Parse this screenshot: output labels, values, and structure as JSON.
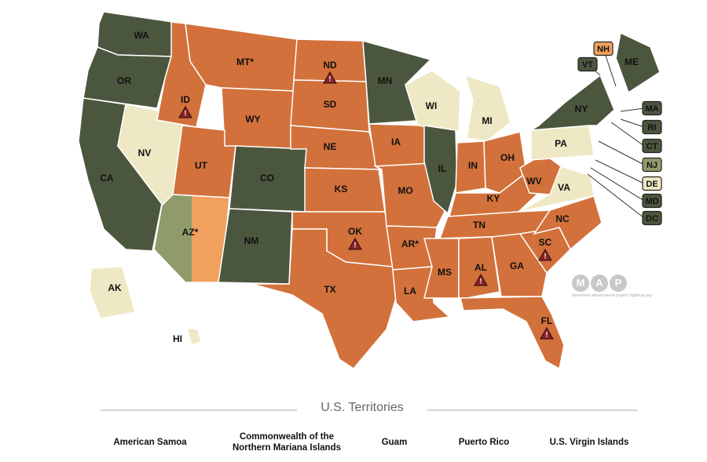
{
  "colors": {
    "dark_green": "#4b563e",
    "light_green": "#8f9b6b",
    "cream": "#efe8c4",
    "dark_orange": "#d2713b",
    "light_orange": "#f2a05e",
    "warning": "#8b2226",
    "outline": "#ffffff"
  },
  "states": {
    "WA": {
      "label": "WA",
      "category": "dark_green"
    },
    "OR": {
      "label": "OR",
      "category": "dark_green"
    },
    "CA": {
      "label": "CA",
      "category": "dark_green"
    },
    "NV": {
      "label": "NV",
      "category": "cream"
    },
    "ID": {
      "label": "ID",
      "category": "dark_orange",
      "warning": true
    },
    "MT": {
      "label": "MT*",
      "category": "dark_orange"
    },
    "WY": {
      "label": "WY",
      "category": "dark_orange"
    },
    "UT": {
      "label": "UT",
      "category": "dark_orange"
    },
    "AZ": {
      "label": "AZ*",
      "category": "split_green_orange"
    },
    "CO": {
      "label": "CO",
      "category": "dark_green"
    },
    "NM": {
      "label": "NM",
      "category": "dark_green"
    },
    "ND": {
      "label": "ND",
      "category": "dark_orange",
      "warning": true
    },
    "SD": {
      "label": "SD",
      "category": "dark_orange"
    },
    "NE": {
      "label": "NE",
      "category": "dark_orange"
    },
    "KS": {
      "label": "KS",
      "category": "dark_orange"
    },
    "OK": {
      "label": "OK",
      "category": "dark_orange",
      "warning": true
    },
    "TX": {
      "label": "TX",
      "category": "dark_orange"
    },
    "MN": {
      "label": "MN",
      "category": "dark_green"
    },
    "IA": {
      "label": "IA",
      "category": "dark_orange"
    },
    "MO": {
      "label": "MO",
      "category": "dark_orange"
    },
    "AR": {
      "label": "AR*",
      "category": "dark_orange"
    },
    "LA": {
      "label": "LA",
      "category": "dark_orange"
    },
    "WI": {
      "label": "WI",
      "category": "cream"
    },
    "IL": {
      "label": "IL",
      "category": "dark_green"
    },
    "MI": {
      "label": "MI",
      "category": "cream"
    },
    "IN": {
      "label": "IN",
      "category": "dark_orange"
    },
    "OH": {
      "label": "OH",
      "category": "dark_orange"
    },
    "KY": {
      "label": "KY",
      "category": "dark_orange"
    },
    "TN": {
      "label": "TN",
      "category": "dark_orange"
    },
    "MS": {
      "label": "MS",
      "category": "dark_orange"
    },
    "AL": {
      "label": "AL",
      "category": "dark_orange",
      "warning": true
    },
    "GA": {
      "label": "GA",
      "category": "dark_orange"
    },
    "FL": {
      "label": "FL",
      "category": "dark_orange",
      "warning": true
    },
    "SC": {
      "label": "SC",
      "category": "dark_orange",
      "warning": true
    },
    "NC": {
      "label": "NC",
      "category": "dark_orange"
    },
    "WV": {
      "label": "WV",
      "category": "dark_orange"
    },
    "VA": {
      "label": "VA",
      "category": "cream"
    },
    "PA": {
      "label": "PA",
      "category": "cream"
    },
    "NY": {
      "label": "NY",
      "category": "dark_green"
    },
    "ME": {
      "label": "ME",
      "category": "dark_green"
    },
    "AK": {
      "label": "AK",
      "category": "cream"
    },
    "HI": {
      "label": "HI",
      "category": "cream"
    }
  },
  "callouts": {
    "NH": {
      "label": "NH",
      "category": "light_orange"
    },
    "VT": {
      "label": "VT",
      "category": "dark_green"
    },
    "MA": {
      "label": "MA",
      "category": "dark_green"
    },
    "RI": {
      "label": "RI",
      "category": "dark_green"
    },
    "CT": {
      "label": "CT",
      "category": "dark_green"
    },
    "NJ": {
      "label": "NJ",
      "category": "light_green"
    },
    "DE": {
      "label": "DE",
      "category": "cream"
    },
    "MD": {
      "label": "MD",
      "category": "dark_green"
    },
    "DC": {
      "label": "DC",
      "category": "dark_green"
    }
  },
  "warning_glyph": "!",
  "logo": {
    "letters": [
      "M",
      "A",
      "P"
    ],
    "subtitle": "movement advancement project | lgbtmap.org"
  },
  "territories": {
    "heading": "U.S. Territories",
    "items": [
      {
        "line1": "American Samoa",
        "line2": ""
      },
      {
        "line1": "Commonwealth of the",
        "line2": "Northern Mariana Islands"
      },
      {
        "line1": "Guam",
        "line2": ""
      },
      {
        "line1": "Puerto Rico",
        "line2": ""
      },
      {
        "line1": "U.S. Virgin Islands",
        "line2": ""
      }
    ]
  }
}
